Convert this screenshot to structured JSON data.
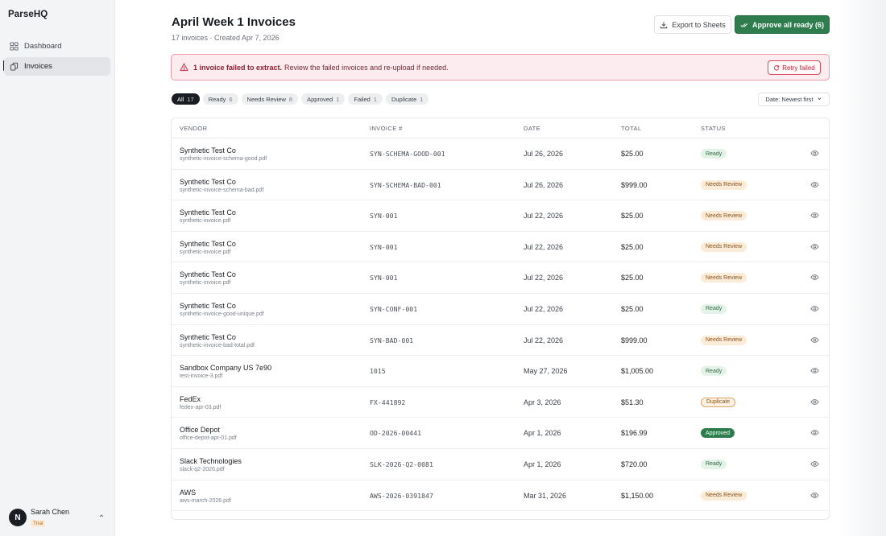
{
  "app": {
    "brand": "ParseHQ"
  },
  "sidebar": {
    "items": [
      {
        "label": "Dashboard",
        "icon": "dashboard-icon"
      },
      {
        "label": "Invoices",
        "icon": "invoices-icon",
        "active": true
      }
    ],
    "user": {
      "initial": "N",
      "name": "Sarah Chen",
      "plan": "Trial"
    }
  },
  "header": {
    "title": "April Week 1 Invoices",
    "subtitle": "17 invoices · Created Apr 7, 2026",
    "export_label": "Export to Sheets",
    "approve_label": "Approve all ready (6)"
  },
  "alert": {
    "strong": "1 invoice failed to extract.",
    "text": "Review the failed invoices and re-upload if needed.",
    "retry_label": "Retry failed"
  },
  "filters": [
    {
      "label": "All",
      "count": "17",
      "active": true
    },
    {
      "label": "Ready",
      "count": "6"
    },
    {
      "label": "Needs Review",
      "count": "8"
    },
    {
      "label": "Approved",
      "count": "1"
    },
    {
      "label": "Failed",
      "count": "1"
    },
    {
      "label": "Duplicate",
      "count": "1"
    }
  ],
  "sort": {
    "label": "Date: Newest first"
  },
  "table": {
    "columns": [
      "VENDOR",
      "INVOICE #",
      "DATE",
      "TOTAL",
      "STATUS"
    ],
    "rows": [
      {
        "vendor": "Synthetic Test Co",
        "file": "synthetic-invoice-schema-good.pdf",
        "invoice": "SYN-SCHEMA-GOOD-001",
        "date": "Jul 26, 2026",
        "total": "$25.00",
        "status": "Ready"
      },
      {
        "vendor": "Synthetic Test Co",
        "file": "synthetic-invoice-schema-bad.pdf",
        "invoice": "SYN-SCHEMA-BAD-001",
        "date": "Jul 26, 2026",
        "total": "$999.00",
        "status": "Needs Review"
      },
      {
        "vendor": "Synthetic Test Co",
        "file": "synthetic-invoice.pdf",
        "invoice": "SYN-001",
        "date": "Jul 22, 2026",
        "total": "$25.00",
        "status": "Needs Review"
      },
      {
        "vendor": "Synthetic Test Co",
        "file": "synthetic-invoice.pdf",
        "invoice": "SYN-001",
        "date": "Jul 22, 2026",
        "total": "$25.00",
        "status": "Needs Review"
      },
      {
        "vendor": "Synthetic Test Co",
        "file": "synthetic-invoice.pdf",
        "invoice": "SYN-001",
        "date": "Jul 22, 2026",
        "total": "$25.00",
        "status": "Needs Review"
      },
      {
        "vendor": "Synthetic Test Co",
        "file": "synthetic-invoice-good-unique.pdf",
        "invoice": "SYN-CONF-001",
        "date": "Jul 22, 2026",
        "total": "$25.00",
        "status": "Ready"
      },
      {
        "vendor": "Synthetic Test Co",
        "file": "synthetic-invoice-bad-total.pdf",
        "invoice": "SYN-BAD-001",
        "date": "Jul 22, 2026",
        "total": "$999.00",
        "status": "Needs Review"
      },
      {
        "vendor": "Sandbox Company US 7e90",
        "file": "test-invoice-3.pdf",
        "invoice": "1015",
        "date": "May 27, 2026",
        "total": "$1,005.00",
        "status": "Ready"
      },
      {
        "vendor": "FedEx",
        "file": "fedex-apr-03.pdf",
        "invoice": "FX-441892",
        "date": "Apr 3, 2026",
        "total": "$51.30",
        "status": "Duplicate"
      },
      {
        "vendor": "Office Depot",
        "file": "office-depot-apr-01.pdf",
        "invoice": "OD-2026-00441",
        "date": "Apr 1, 2026",
        "total": "$196.99",
        "status": "Approved"
      },
      {
        "vendor": "Slack Technologies",
        "file": "slack-q2-2026.pdf",
        "invoice": "SLK-2026-Q2-0081",
        "date": "Apr 1, 2026",
        "total": "$720.00",
        "status": "Ready"
      },
      {
        "vendor": "AWS",
        "file": "aws-march-2026.pdf",
        "invoice": "AWS-2026-0391847",
        "date": "Mar 31, 2026",
        "total": "$1,150.00",
        "status": "Needs Review"
      }
    ]
  },
  "colors": {
    "accent_green": "#2f7d4e",
    "alert_bg": "#fdecef",
    "alert_border": "#ef9aa8",
    "ready_bg": "#e4f3e8",
    "review_bg": "#fbecd9"
  }
}
